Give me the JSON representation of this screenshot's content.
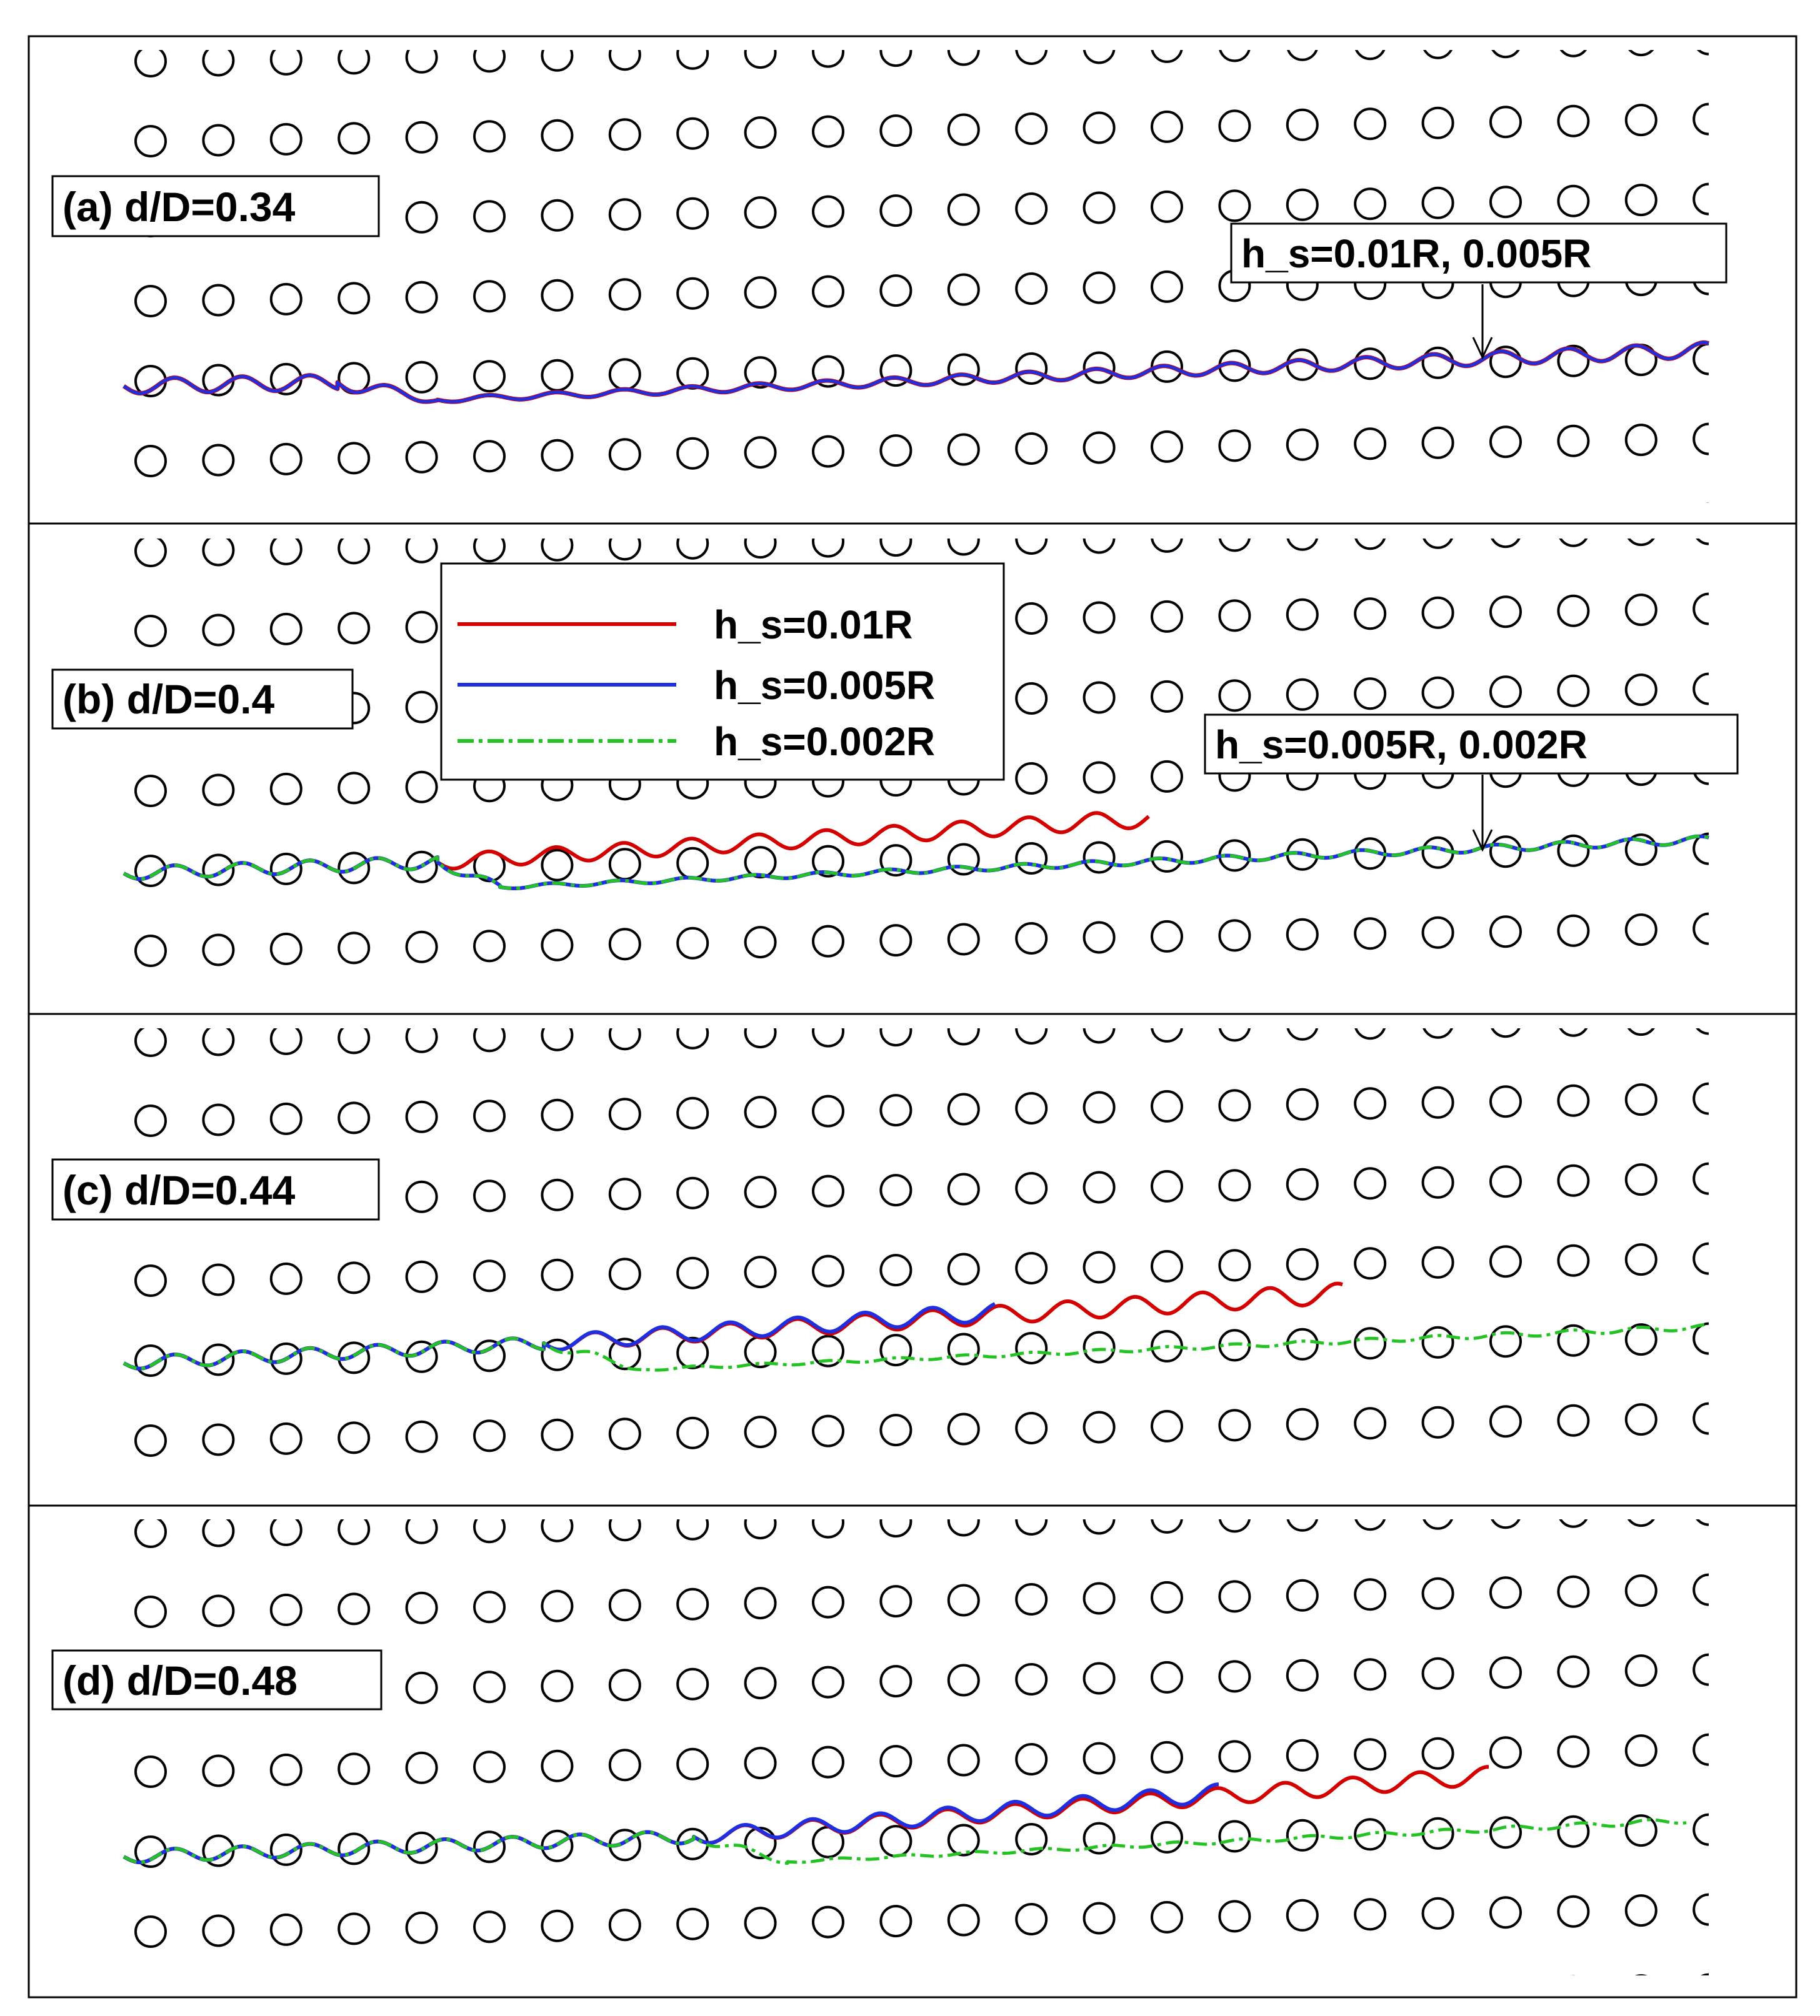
{
  "figure": {
    "panels": [
      {
        "id": "a",
        "label": "(a) d/D=0.34",
        "annotation": "h_s=0.01R, 0.005R",
        "paths": [
          "blue-red-overlap"
        ]
      },
      {
        "id": "b",
        "label": "(b) d/D=0.4",
        "annotation": "h_s=0.005R, 0.002R",
        "paths": [
          "red",
          "blue-green-overlap"
        ]
      },
      {
        "id": "c",
        "label": "(c) d/D=0.44",
        "annotation": "",
        "paths": [
          "red",
          "blue",
          "green"
        ]
      },
      {
        "id": "d",
        "label": "(d) d/D=0.48",
        "annotation": "",
        "paths": [
          "red",
          "blue",
          "green"
        ]
      }
    ],
    "legend": [
      {
        "label": "h_s=0.01R",
        "color": "#d40000",
        "style": "solid"
      },
      {
        "label": "h_s=0.005R",
        "color": "#1f2fe0",
        "style": "solid"
      },
      {
        "label": "h_s=0.002R",
        "color": "#22c322",
        "style": "dash-dot"
      }
    ],
    "colors": {
      "red": "#d40000",
      "blue": "#1f2fe0",
      "green": "#22c322",
      "circle": "#000000",
      "frame": "#000000"
    }
  }
}
